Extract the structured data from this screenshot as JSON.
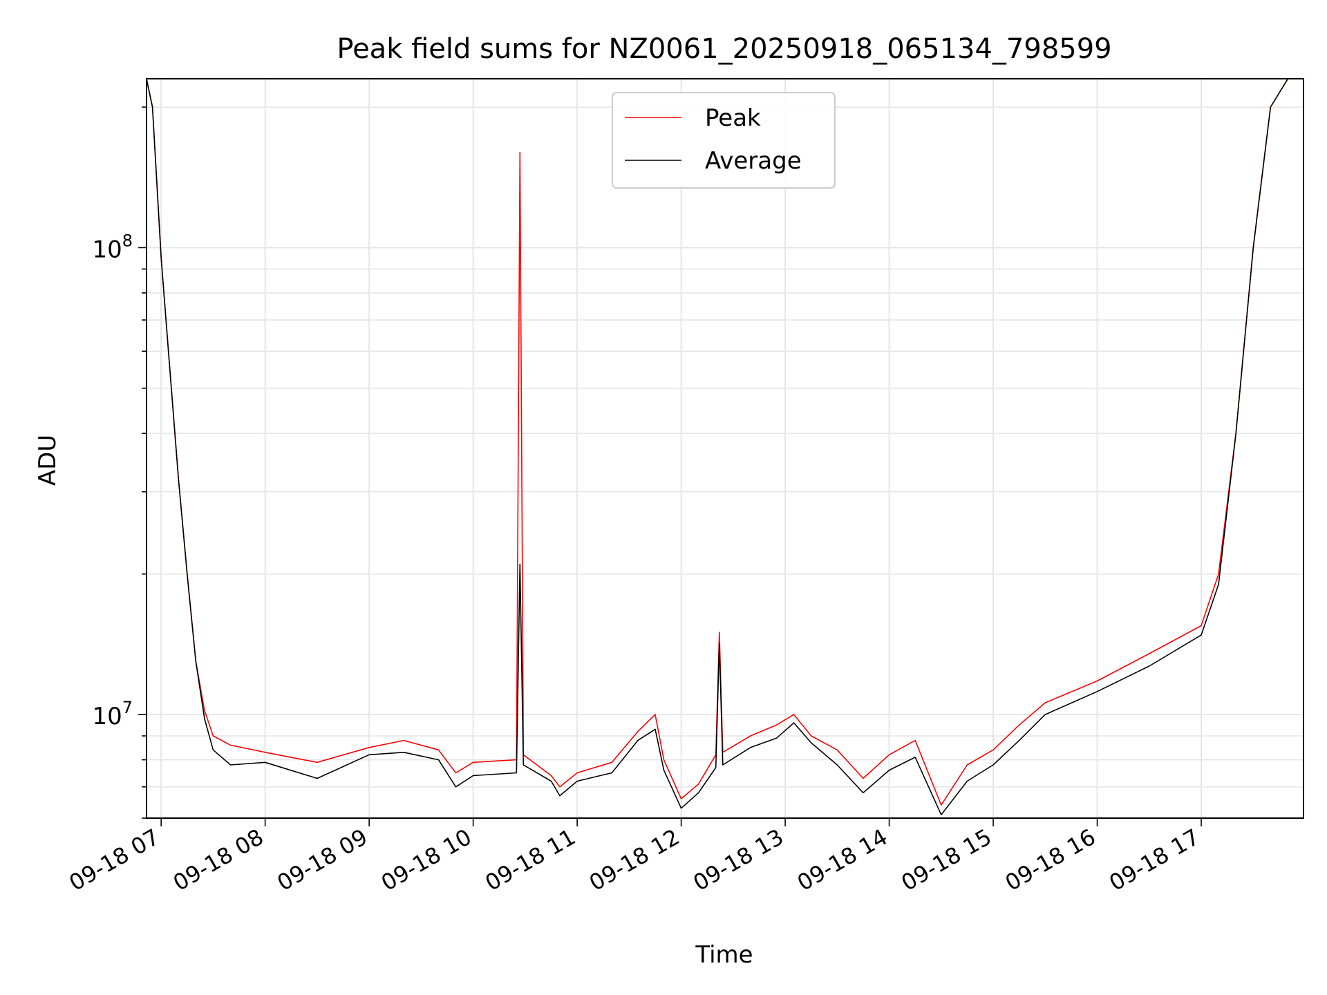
{
  "chart_data": {
    "type": "line",
    "title": "Peak field sums for NZ0061_20250918_065134_798599",
    "xlabel": "Time",
    "ylabel": "ADU",
    "yscale": "log",
    "grid": true,
    "grid_minor": true,
    "legend_position": "top-center",
    "xlim": [
      "2025-09-18T06:51:34",
      "2025-09-18T17:59:00"
    ],
    "ylim": [
      6000000,
      230000000
    ],
    "x_ticks": [
      "09-18 07",
      "09-18 08",
      "09-18 09",
      "09-18 10",
      "09-18 11",
      "09-18 12",
      "09-18 13",
      "09-18 14",
      "09-18 15",
      "09-18 16",
      "09-18 17"
    ],
    "y_ticks": [
      {
        "value": 10000000,
        "base": "10",
        "exp": "7"
      },
      {
        "value": 100000000,
        "base": "10",
        "exp": "8"
      }
    ],
    "series": [
      {
        "name": "Peak",
        "color": "#ff0000",
        "points": [
          [
            "2025-09-18T06:51:34",
            230000000
          ],
          [
            "2025-09-18T06:55:00",
            200000000
          ],
          [
            "2025-09-18T07:00:00",
            95000000
          ],
          [
            "2025-09-18T07:05:00",
            55000000
          ],
          [
            "2025-09-18T07:10:00",
            32000000
          ],
          [
            "2025-09-18T07:15:00",
            20000000
          ],
          [
            "2025-09-18T07:20:00",
            13000000
          ],
          [
            "2025-09-18T07:25:00",
            10200000
          ],
          [
            "2025-09-18T07:30:00",
            9000000
          ],
          [
            "2025-09-18T07:40:00",
            8600000
          ],
          [
            "2025-09-18T08:00:00",
            8300000
          ],
          [
            "2025-09-18T08:30:00",
            7900000
          ],
          [
            "2025-09-18T09:00:00",
            8500000
          ],
          [
            "2025-09-18T09:20:00",
            8800000
          ],
          [
            "2025-09-18T09:40:00",
            8400000
          ],
          [
            "2025-09-18T09:50:00",
            7500000
          ],
          [
            "2025-09-18T10:00:00",
            7900000
          ],
          [
            "2025-09-18T10:25:00",
            8000000
          ],
          [
            "2025-09-18T10:27:00",
            160000000
          ],
          [
            "2025-09-18T10:29:00",
            8200000
          ],
          [
            "2025-09-18T10:45:00",
            7400000
          ],
          [
            "2025-09-18T10:50:00",
            7000000
          ],
          [
            "2025-09-18T11:00:00",
            7500000
          ],
          [
            "2025-09-18T11:20:00",
            7900000
          ],
          [
            "2025-09-18T11:35:00",
            9200000
          ],
          [
            "2025-09-18T11:45:00",
            10000000
          ],
          [
            "2025-09-18T11:50:00",
            8000000
          ],
          [
            "2025-09-18T12:00:00",
            6600000
          ],
          [
            "2025-09-18T12:10:00",
            7100000
          ],
          [
            "2025-09-18T12:20:00",
            8200000
          ],
          [
            "2025-09-18T12:22:00",
            15000000
          ],
          [
            "2025-09-18T12:24:00",
            8300000
          ],
          [
            "2025-09-18T12:40:00",
            9000000
          ],
          [
            "2025-09-18T12:55:00",
            9500000
          ],
          [
            "2025-09-18T13:05:00",
            10000000
          ],
          [
            "2025-09-18T13:15:00",
            9000000
          ],
          [
            "2025-09-18T13:30:00",
            8400000
          ],
          [
            "2025-09-18T13:45:00",
            7300000
          ],
          [
            "2025-09-18T14:00:00",
            8200000
          ],
          [
            "2025-09-18T14:15:00",
            8800000
          ],
          [
            "2025-09-18T14:30:00",
            6400000
          ],
          [
            "2025-09-18T14:45:00",
            7800000
          ],
          [
            "2025-09-18T15:00:00",
            8400000
          ],
          [
            "2025-09-18T15:15:00",
            9500000
          ],
          [
            "2025-09-18T15:30:00",
            10600000
          ],
          [
            "2025-09-18T16:00:00",
            11800000
          ],
          [
            "2025-09-18T16:30:00",
            13500000
          ],
          [
            "2025-09-18T17:00:00",
            15500000
          ],
          [
            "2025-09-18T17:10:00",
            20000000
          ],
          [
            "2025-09-18T17:20:00",
            40000000
          ],
          [
            "2025-09-18T17:30:00",
            100000000
          ],
          [
            "2025-09-18T17:40:00",
            200000000
          ],
          [
            "2025-09-18T17:50:00",
            230000000
          ]
        ]
      },
      {
        "name": "Average",
        "color": "#000000",
        "points": [
          [
            "2025-09-18T06:51:34",
            230000000
          ],
          [
            "2025-09-18T06:55:00",
            200000000
          ],
          [
            "2025-09-18T07:00:00",
            95000000
          ],
          [
            "2025-09-18T07:05:00",
            55000000
          ],
          [
            "2025-09-18T07:10:00",
            32000000
          ],
          [
            "2025-09-18T07:15:00",
            20000000
          ],
          [
            "2025-09-18T07:20:00",
            13000000
          ],
          [
            "2025-09-18T07:25:00",
            9800000
          ],
          [
            "2025-09-18T07:30:00",
            8400000
          ],
          [
            "2025-09-18T07:40:00",
            7800000
          ],
          [
            "2025-09-18T08:00:00",
            7900000
          ],
          [
            "2025-09-18T08:30:00",
            7300000
          ],
          [
            "2025-09-18T09:00:00",
            8200000
          ],
          [
            "2025-09-18T09:20:00",
            8300000
          ],
          [
            "2025-09-18T09:40:00",
            8000000
          ],
          [
            "2025-09-18T09:50:00",
            7000000
          ],
          [
            "2025-09-18T10:00:00",
            7400000
          ],
          [
            "2025-09-18T10:25:00",
            7500000
          ],
          [
            "2025-09-18T10:27:00",
            21000000
          ],
          [
            "2025-09-18T10:29:00",
            7800000
          ],
          [
            "2025-09-18T10:45:00",
            7200000
          ],
          [
            "2025-09-18T10:50:00",
            6700000
          ],
          [
            "2025-09-18T11:00:00",
            7200000
          ],
          [
            "2025-09-18T11:20:00",
            7500000
          ],
          [
            "2025-09-18T11:35:00",
            8800000
          ],
          [
            "2025-09-18T11:45:00",
            9300000
          ],
          [
            "2025-09-18T11:50:00",
            7600000
          ],
          [
            "2025-09-18T12:00:00",
            6300000
          ],
          [
            "2025-09-18T12:10:00",
            6800000
          ],
          [
            "2025-09-18T12:20:00",
            7700000
          ],
          [
            "2025-09-18T12:22:00",
            14200000
          ],
          [
            "2025-09-18T12:24:00",
            7800000
          ],
          [
            "2025-09-18T12:40:00",
            8500000
          ],
          [
            "2025-09-18T12:55:00",
            8900000
          ],
          [
            "2025-09-18T13:05:00",
            9600000
          ],
          [
            "2025-09-18T13:15:00",
            8700000
          ],
          [
            "2025-09-18T13:30:00",
            7800000
          ],
          [
            "2025-09-18T13:45:00",
            6800000
          ],
          [
            "2025-09-18T14:00:00",
            7600000
          ],
          [
            "2025-09-18T14:15:00",
            8100000
          ],
          [
            "2025-09-18T14:30:00",
            6100000
          ],
          [
            "2025-09-18T14:45:00",
            7200000
          ],
          [
            "2025-09-18T15:00:00",
            7800000
          ],
          [
            "2025-09-18T15:15:00",
            8800000
          ],
          [
            "2025-09-18T15:30:00",
            10000000
          ],
          [
            "2025-09-18T16:00:00",
            11200000
          ],
          [
            "2025-09-18T16:30:00",
            12700000
          ],
          [
            "2025-09-18T17:00:00",
            14800000
          ],
          [
            "2025-09-18T17:10:00",
            19000000
          ],
          [
            "2025-09-18T17:20:00",
            40000000
          ],
          [
            "2025-09-18T17:30:00",
            100000000
          ],
          [
            "2025-09-18T17:40:00",
            200000000
          ],
          [
            "2025-09-18T17:50:00",
            230000000
          ]
        ]
      }
    ]
  }
}
